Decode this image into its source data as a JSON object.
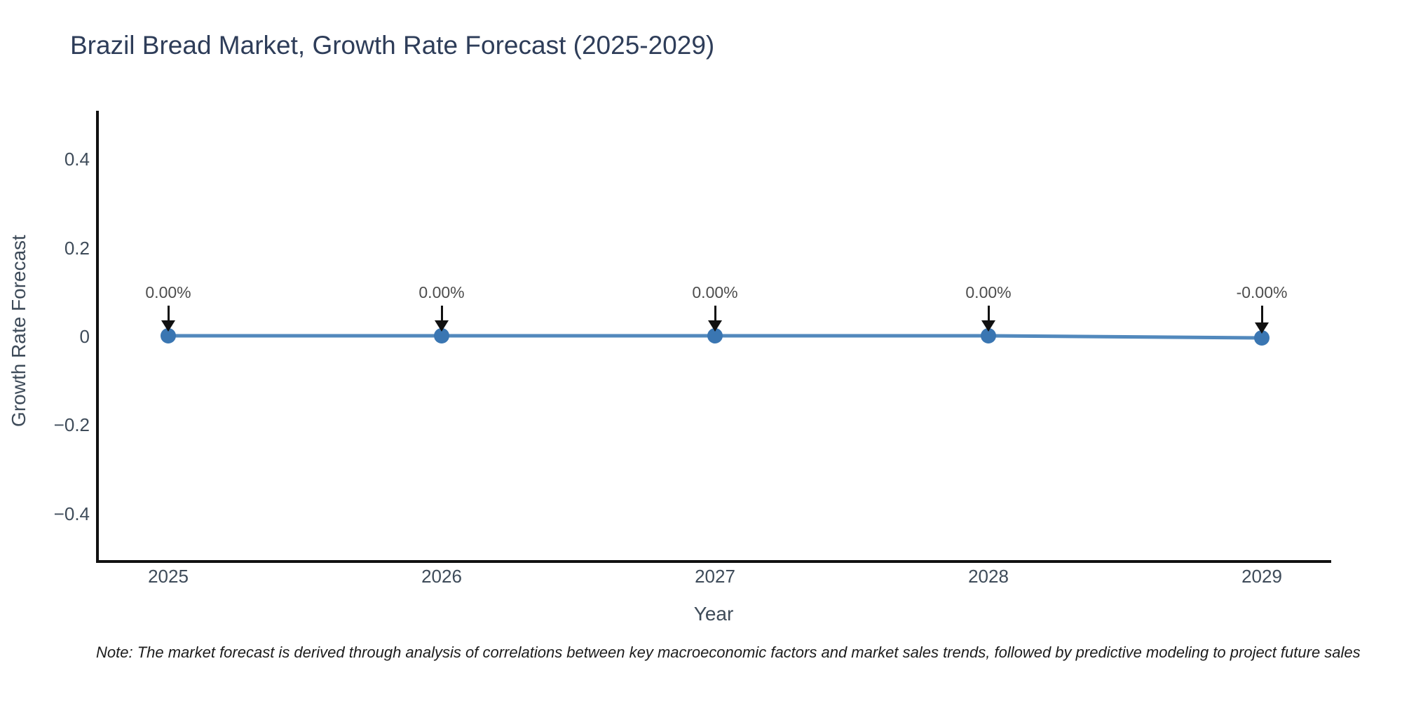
{
  "note": "Note: The market forecast is derived through analysis of correlations between key macroeconomic factors and market sales trends, followed by predictive modeling to project future sales",
  "chart_data": {
    "type": "line",
    "title": "Brazil Bread Market, Growth Rate Forecast (2025-2029)",
    "xlabel": "Year",
    "ylabel": "Growth Rate Forecast",
    "x": [
      2025,
      2026,
      2027,
      2028,
      2029
    ],
    "y": [
      0.0,
      0.0,
      0.0,
      0.0,
      -0.0
    ],
    "point_labels": [
      "0.00%",
      "0.00%",
      "0.00%",
      "0.00%",
      "-0.00%"
    ],
    "xtick_labels": [
      "2025",
      "2026",
      "2027",
      "2028",
      "2029"
    ],
    "yticks": [
      0.4,
      0.2,
      0,
      -0.2,
      -0.4
    ],
    "ytick_labels": [
      "0.4",
      "0.2",
      "0",
      "−0.2",
      "−0.4"
    ],
    "ylim": [
      -0.5,
      0.5
    ],
    "grid": false,
    "legend": "none",
    "colors": {
      "line": "#5289bd",
      "marker": "#3a76b2",
      "arrow": "#111111",
      "axis": "#111111",
      "title_text": "#2e3d59",
      "tick_text": "#3e4b59",
      "annotation_text": "#4d4d4d"
    }
  }
}
